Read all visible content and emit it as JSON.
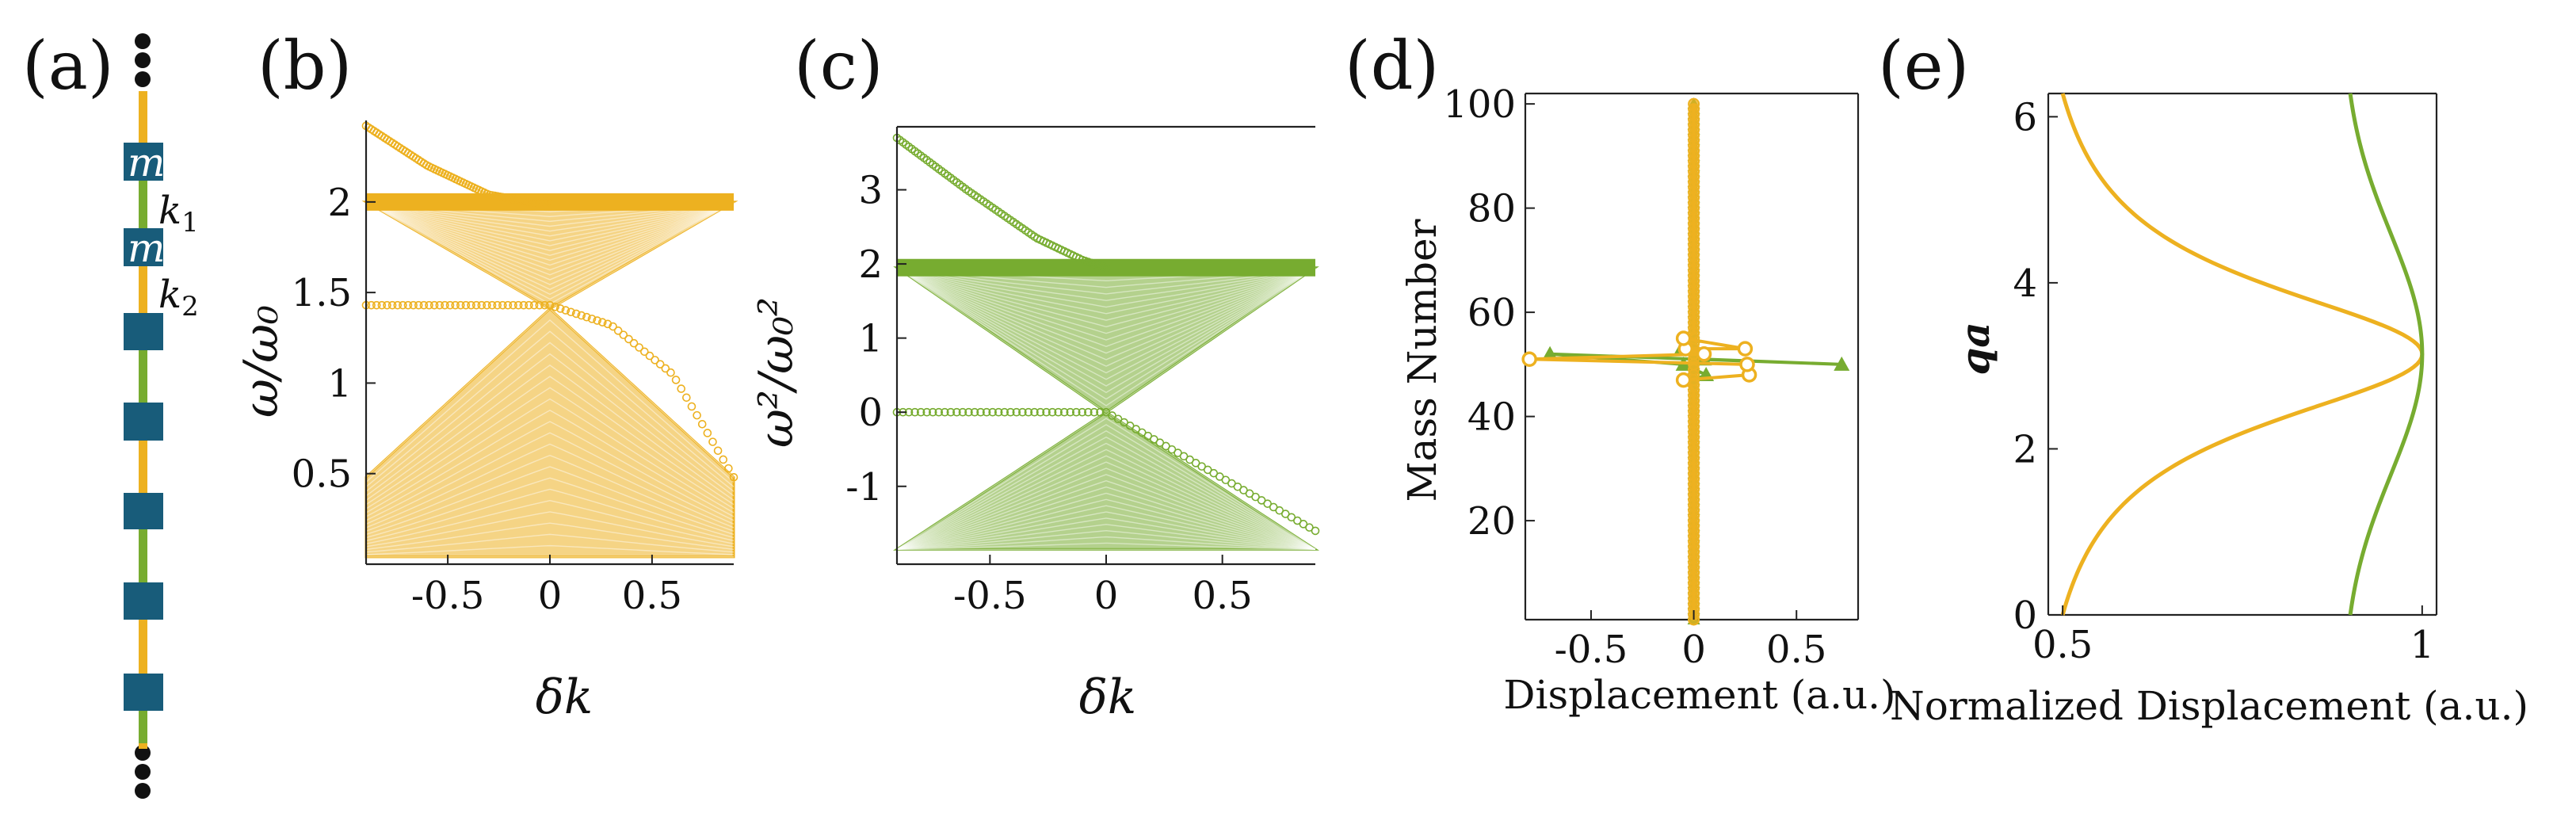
{
  "colors": {
    "yellow": "#EDB120",
    "green": "#77AC30",
    "navy": "#185C7A",
    "axis": "#222222"
  },
  "panel_a": {
    "label": "(a)",
    "mass_label": "m",
    "spring_labels": [
      "k",
      "1",
      "k",
      "2"
    ]
  },
  "chart_data": [
    {
      "id": "b",
      "panel_label": "(b)",
      "type": "scatter",
      "xlabel": "δk",
      "ylabel": "ω/ω₀",
      "xlim": [
        -0.9,
        0.9
      ],
      "ylim": [
        0,
        2.45
      ],
      "xticks": [
        "-0.5",
        "0",
        "0.5"
      ],
      "yticks": [
        "0.5",
        "1",
        "1.5",
        "2"
      ],
      "grid": false,
      "series": [
        {
          "color": "yellow",
          "kind": "band-filled",
          "x": [
            -0.9,
            0,
            0.9
          ],
          "ylow": [
            0.04,
            0.04,
            0.04
          ],
          "yhigh": [
            0.48,
            1.41,
            0.48
          ]
        },
        {
          "color": "yellow",
          "kind": "band-filled",
          "x": [
            -0.9,
            0,
            0.9
          ],
          "ylow": [
            2.0,
            1.41,
            2.0
          ],
          "yhigh": [
            2.0,
            2.0,
            2.0
          ]
        },
        {
          "color": "yellow",
          "kind": "edge-mode",
          "x": [
            -0.9,
            -0.5,
            -0.25,
            0,
            0.3,
            0.6,
            0.9
          ],
          "y": [
            1.43,
            1.43,
            1.43,
            1.43,
            1.32,
            1.05,
            0.48
          ]
        },
        {
          "color": "yellow",
          "kind": "edge-mode",
          "x": [
            -0.9,
            -0.6,
            -0.3,
            -0.1,
            0
          ],
          "y": [
            2.42,
            2.2,
            2.04,
            2.0,
            2.0
          ]
        }
      ]
    },
    {
      "id": "c",
      "panel_label": "(c)",
      "type": "scatter",
      "xlabel": "δk",
      "ylabel": "ω²/ω₀²",
      "xlim": [
        -0.9,
        0.9
      ],
      "ylim": [
        -2.05,
        3.85
      ],
      "xticks": [
        "-0.5",
        "0",
        "0.5"
      ],
      "yticks": [
        "-1",
        "0",
        "1",
        "2",
        "3"
      ],
      "grid": false,
      "series": [
        {
          "color": "green",
          "kind": "band-filled",
          "x": [
            -0.9,
            0,
            0.9
          ],
          "ylow": [
            -1.85,
            -1.85,
            -1.85
          ],
          "yhigh": [
            -1.85,
            0.0,
            -1.85
          ]
        },
        {
          "color": "green",
          "kind": "band-filled",
          "x": [
            -0.9,
            0,
            0.9
          ],
          "ylow": [
            1.95,
            0.0,
            1.95
          ],
          "yhigh": [
            1.95,
            1.95,
            1.95
          ]
        },
        {
          "color": "green",
          "kind": "edge-mode",
          "x": [
            -0.9,
            -0.45,
            0,
            0.45,
            0.9
          ],
          "y": [
            0.0,
            0.0,
            0.0,
            -0.8,
            -1.6
          ]
        },
        {
          "color": "green",
          "kind": "edge-mode",
          "x": [
            -0.9,
            -0.6,
            -0.3,
            -0.1,
            0
          ],
          "y": [
            3.7,
            3.0,
            2.35,
            2.05,
            1.95
          ]
        }
      ]
    },
    {
      "id": "d",
      "panel_label": "(d)",
      "type": "line",
      "xlabel": "Displacement (a.u.)",
      "ylabel": "Mass Number",
      "xlim": [
        -0.82,
        0.8
      ],
      "ylim": [
        1,
        102
      ],
      "xticks": [
        "-0.5",
        "0",
        "0.5"
      ],
      "yticks": [
        "20",
        "40",
        "60",
        "80",
        "100"
      ],
      "grid": false,
      "series": [
        {
          "color": "green",
          "marker": "triangle",
          "x": [
            0,
            0,
            0.06,
            -0.05,
            -0.7,
            0.72,
            0.05,
            -0.06,
            0,
            0
          ],
          "y": [
            1,
            47,
            48,
            50,
            52,
            50,
            51,
            53,
            54,
            100
          ]
        },
        {
          "color": "yellow",
          "marker": "circle",
          "x": [
            0,
            0,
            -0.05,
            0.27,
            0.26,
            -0.8,
            0.05,
            -0.04,
            0.25,
            -0.05,
            0,
            0
          ],
          "y": [
            1,
            45,
            47,
            48,
            50,
            51,
            52,
            53,
            53,
            55,
            56,
            100
          ]
        }
      ]
    },
    {
      "id": "e",
      "panel_label": "(e)",
      "type": "line",
      "xlabel": "Normalized Displacement (a.u.)",
      "ylabel": "qa",
      "xlim": [
        0.48,
        1.02
      ],
      "ylim": [
        0,
        6.28
      ],
      "xticks": [
        "0.5",
        "1"
      ],
      "yticks": [
        "0",
        "2",
        "4",
        "6"
      ],
      "grid": false,
      "series": [
        {
          "color": "yellow",
          "shape": "lorentzian",
          "x_min": 0.5,
          "x_max": 1.0,
          "center": 3.14,
          "width": 1.05
        },
        {
          "color": "green",
          "shape": "gaussian",
          "x_min": 0.9,
          "x_max": 1.0,
          "center": 3.14,
          "width": 1.45
        }
      ]
    }
  ]
}
